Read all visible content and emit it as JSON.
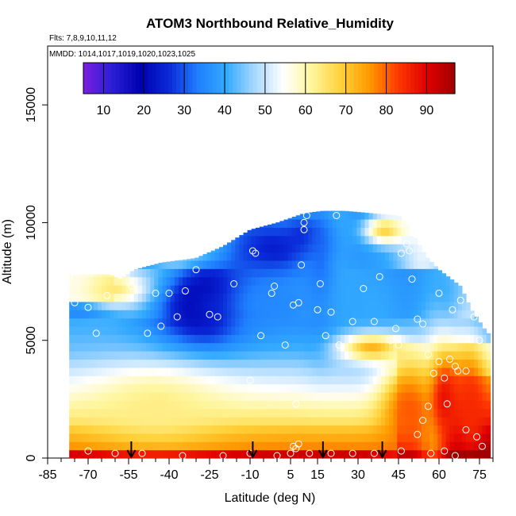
{
  "chart_data": {
    "type": "heatmap",
    "title": "ATOM3 Northbound Relative_Humidity",
    "flights_label": "Flts: 7,8,9,10,11,12",
    "dates_label": "MMDD: 1014,1017,1019,1020,1023,1025",
    "xlabel": "Latitude (deg N)",
    "ylabel": "Altitude (m)",
    "x_ticks": [
      -85,
      -70,
      -55,
      -40,
      -25,
      -10,
      5,
      15,
      30,
      45,
      60,
      75
    ],
    "x_minor_ticks": [
      -80,
      -75,
      -65,
      -60,
      -50,
      -45,
      -35,
      -30,
      -20,
      -15,
      -5,
      0,
      10,
      20,
      25,
      35,
      40,
      50,
      55,
      65,
      70,
      80
    ],
    "xlim": [
      -85,
      80
    ],
    "y_ticks": [
      0,
      5000,
      10000,
      15000
    ],
    "ylim": [
      0,
      17500
    ],
    "colorbar": {
      "range": [
        5,
        97
      ],
      "ticks": [
        10,
        20,
        30,
        40,
        50,
        60,
        70,
        80,
        90
      ],
      "colors": [
        "#7b1fe0",
        "#2a1fd6",
        "#0000b0",
        "#0a2ad8",
        "#1f7fff",
        "#33aaff",
        "#a8d8ff",
        "#ffffff",
        "#fff59a",
        "#ffd23a",
        "#ff9a00",
        "#ff3a00",
        "#e00000",
        "#a00000"
      ]
    },
    "profile_bounds": {
      "lat_start": -77,
      "lat_end": 78,
      "top_altitude": [
        [
          -77,
          7800
        ],
        [
          -62,
          7800
        ],
        [
          -58,
          7600
        ],
        [
          -53,
          8000
        ],
        [
          -43,
          8300
        ],
        [
          -30,
          8500
        ],
        [
          -20,
          9000
        ],
        [
          -10,
          9700
        ],
        [
          0,
          10000
        ],
        [
          10,
          10400
        ],
        [
          17,
          10500
        ],
        [
          25,
          10500
        ],
        [
          35,
          10400
        ],
        [
          45,
          10300
        ],
        [
          48,
          10000
        ],
        [
          55,
          8600
        ],
        [
          60,
          8000
        ],
        [
          68,
          7300
        ],
        [
          72,
          6300
        ],
        [
          78,
          5300
        ]
      ]
    },
    "rh_features": [
      {
        "lat": -25,
        "alt": 6700,
        "rh": 9,
        "wlat": 10,
        "walt": 1200
      },
      {
        "lat": -28,
        "alt": 6400,
        "rh": 18,
        "wlat": 18,
        "walt": 1600
      },
      {
        "lat": 0,
        "alt": 8800,
        "rh": 22,
        "wlat": 15,
        "walt": 1300
      },
      {
        "lat": 10,
        "alt": 9400,
        "rh": 25,
        "wlat": 10,
        "walt": 1200
      },
      {
        "lat": 16,
        "alt": 8000,
        "rh": 30,
        "wlat": 6,
        "walt": 2800
      },
      {
        "lat": 0,
        "alt": 6500,
        "rh": 35,
        "wlat": 25,
        "walt": 1600
      },
      {
        "lat": 35,
        "alt": 6500,
        "rh": 40,
        "wlat": 15,
        "walt": 2500
      },
      {
        "lat": 62,
        "alt": 6000,
        "rh": 38,
        "wlat": 6,
        "walt": 2000
      },
      {
        "lat": 58,
        "alt": 3000,
        "rh": 40,
        "wlat": 5,
        "walt": 3200
      },
      {
        "lat": -60,
        "alt": 7200,
        "rh": 64,
        "wlat": 12,
        "walt": 800
      },
      {
        "lat": 40,
        "alt": 9700,
        "rh": 68,
        "wlat": 8,
        "walt": 600
      },
      {
        "lat": 35,
        "alt": 4700,
        "rh": 72,
        "wlat": 12,
        "walt": 600
      },
      {
        "lat": -45,
        "alt": 2200,
        "rh": 63,
        "wlat": 25,
        "walt": 1600
      },
      {
        "lat": 48,
        "alt": 2000,
        "rh": 80,
        "wlat": 10,
        "walt": 2000
      },
      {
        "lat": 62,
        "alt": 2500,
        "rh": 88,
        "wlat": 8,
        "walt": 2500
      },
      {
        "lat": 72,
        "alt": 2000,
        "rh": 85,
        "wlat": 6,
        "walt": 2500
      }
    ],
    "arrow_latitudes": [
      -54,
      -9,
      17,
      39
    ],
    "sample_points": [
      [
        -77,
        7700
      ],
      [
        -75,
        6600
      ],
      [
        -70,
        6400
      ],
      [
        -67,
        5300
      ],
      [
        -63,
        6900
      ],
      [
        -54,
        7300
      ],
      [
        -48,
        5300
      ],
      [
        -45,
        7000
      ],
      [
        -40,
        7000
      ],
      [
        -43,
        5600
      ],
      [
        -37,
        6000
      ],
      [
        -34,
        7100
      ],
      [
        -30,
        8000
      ],
      [
        -25,
        6100
      ],
      [
        -22,
        6000
      ],
      [
        -16,
        7400
      ],
      [
        -9,
        8800
      ],
      [
        -8,
        8700
      ],
      [
        -6,
        5200
      ],
      [
        -2,
        7000
      ],
      [
        -1,
        7300
      ],
      [
        3,
        4800
      ],
      [
        6,
        6500
      ],
      [
        8,
        6600
      ],
      [
        9,
        8200
      ],
      [
        10,
        9700
      ],
      [
        11,
        10300
      ],
      [
        15,
        6300
      ],
      [
        16,
        7400
      ],
      [
        20,
        6200
      ],
      [
        22,
        10300
      ],
      [
        18,
        5200
      ],
      [
        23,
        4800
      ],
      [
        28,
        5800
      ],
      [
        32,
        7200
      ],
      [
        36,
        5800
      ],
      [
        38,
        7700
      ],
      [
        42,
        5000
      ],
      [
        44,
        5500
      ],
      [
        45,
        4800
      ],
      [
        46,
        8700
      ],
      [
        48,
        9100
      ],
      [
        49,
        8800
      ],
      [
        50,
        7600
      ],
      [
        52,
        5900
      ],
      [
        54,
        5700
      ],
      [
        56,
        4400
      ],
      [
        58,
        3600
      ],
      [
        60,
        4100
      ],
      [
        62,
        3400
      ],
      [
        64,
        4200
      ],
      [
        66,
        3900
      ],
      [
        67,
        3700
      ],
      [
        68,
        6700
      ],
      [
        70,
        3700
      ],
      [
        73,
        6000
      ],
      [
        75,
        5000
      ],
      [
        60,
        7000
      ],
      [
        63,
        2300
      ],
      [
        65,
        6300
      ],
      [
        58,
        8500
      ],
      [
        56,
        2200
      ],
      [
        54,
        1600
      ],
      [
        52,
        1000
      ],
      [
        70,
        1200
      ],
      [
        74,
        900
      ],
      [
        76,
        500
      ],
      [
        -70,
        300
      ],
      [
        -60,
        200
      ],
      [
        -50,
        200
      ],
      [
        -35,
        100
      ],
      [
        -20,
        100
      ],
      [
        -10,
        200
      ],
      [
        0,
        100
      ],
      [
        5,
        200
      ],
      [
        6,
        500
      ],
      [
        7,
        400
      ],
      [
        8,
        600
      ],
      [
        12,
        200
      ],
      [
        20,
        200
      ],
      [
        28,
        200
      ],
      [
        36,
        200
      ],
      [
        46,
        300
      ],
      [
        57,
        200
      ],
      [
        62,
        300
      ],
      [
        66,
        100
      ],
      [
        7,
        2300
      ],
      [
        -10,
        3300
      ],
      [
        10,
        10000
      ]
    ]
  }
}
